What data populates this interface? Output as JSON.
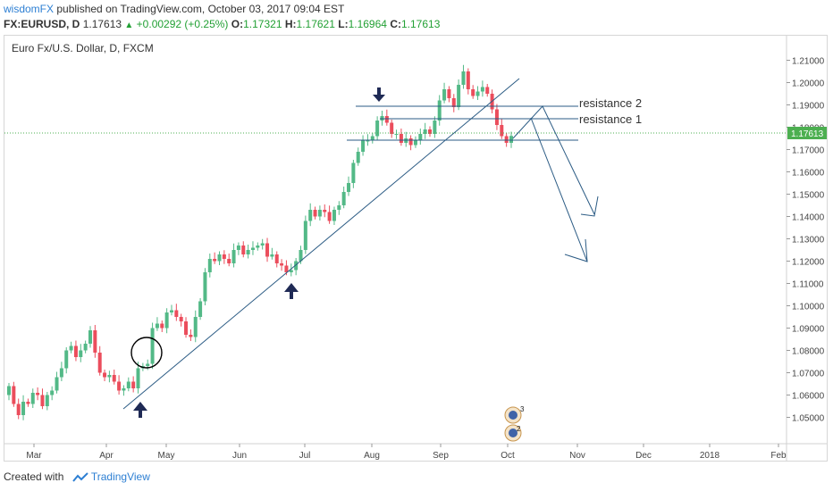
{
  "header": {
    "author": "wisdomFX",
    "published_text": "published on TradingView.com, October 03, 2017 09:04 EST",
    "symbol": "FX:EURUSD, D",
    "last": "1.17613",
    "change": "+0.00292 (+0.25%)",
    "o_label": "O:",
    "o": "1.17321",
    "h_label": "H:",
    "h": "1.17621",
    "l_label": "L:",
    "l": "1.16964",
    "c_label": "C:",
    "c": "1.17613"
  },
  "chart_title": "Euro Fx/U.S. Dollar, D, FXCM",
  "footer": {
    "created_with": "Created with",
    "brand": "TradingView"
  },
  "colors": {
    "up": "#53b987",
    "down": "#eb4d5c",
    "line": "#2b5b84",
    "price_tag": "#4caf50",
    "brand": "#2d7fd3"
  },
  "chart_data": {
    "type": "candlestick",
    "title": "Euro Fx/U.S. Dollar, D, FXCM",
    "ylim": [
      1.045,
      1.213
    ],
    "yticks": [
      "1.21000",
      "1.20000",
      "1.19000",
      "1.18000",
      "1.17000",
      "1.16000",
      "1.15000",
      "1.14000",
      "1.13000",
      "1.12000",
      "1.11000",
      "1.10000",
      "1.09000",
      "1.08000",
      "1.07000",
      "1.06000",
      "1.05000"
    ],
    "xticks": [
      "Mar",
      "Apr",
      "May",
      "Jun",
      "Jul",
      "Aug",
      "Sep",
      "Oct",
      "Nov",
      "Dec",
      "2018",
      "Feb"
    ],
    "last_price_label": "1.17613",
    "resistance_labels": [
      "resistance 2",
      "resistance 1"
    ],
    "resistance_levels": [
      1.1876,
      1.1823
    ],
    "support_level": 1.173,
    "event_badges": [
      "3",
      "2"
    ],
    "closes": [
      1.064,
      1.056,
      1.051,
      1.057,
      1.056,
      1.061,
      1.06,
      1.055,
      1.06,
      1.062,
      1.068,
      1.072,
      1.08,
      1.082,
      1.077,
      1.08,
      1.083,
      1.089,
      1.079,
      1.07,
      1.068,
      1.069,
      1.066,
      1.062,
      1.063,
      1.066,
      1.063,
      1.072,
      1.073,
      1.074,
      1.09,
      1.092,
      1.09,
      1.097,
      1.098,
      1.095,
      1.093,
      1.087,
      1.086,
      1.095,
      1.102,
      1.115,
      1.121,
      1.12,
      1.123,
      1.121,
      1.119,
      1.125,
      1.127,
      1.123,
      1.125,
      1.126,
      1.127,
      1.128,
      1.122,
      1.123,
      1.119,
      1.118,
      1.115,
      1.116,
      1.12,
      1.125,
      1.138,
      1.143,
      1.14,
      1.143,
      1.142,
      1.138,
      1.143,
      1.145,
      1.151,
      1.155,
      1.164,
      1.169,
      1.174,
      1.174,
      1.176,
      1.183,
      1.185,
      1.182,
      1.177,
      1.177,
      1.173,
      1.175,
      1.172,
      1.174,
      1.177,
      1.179,
      1.177,
      1.183,
      1.192,
      1.197,
      1.193,
      1.189,
      1.199,
      1.205,
      1.197,
      1.194,
      1.196,
      1.198,
      1.195,
      1.188,
      1.181,
      1.176,
      1.173,
      1.1761
    ]
  }
}
